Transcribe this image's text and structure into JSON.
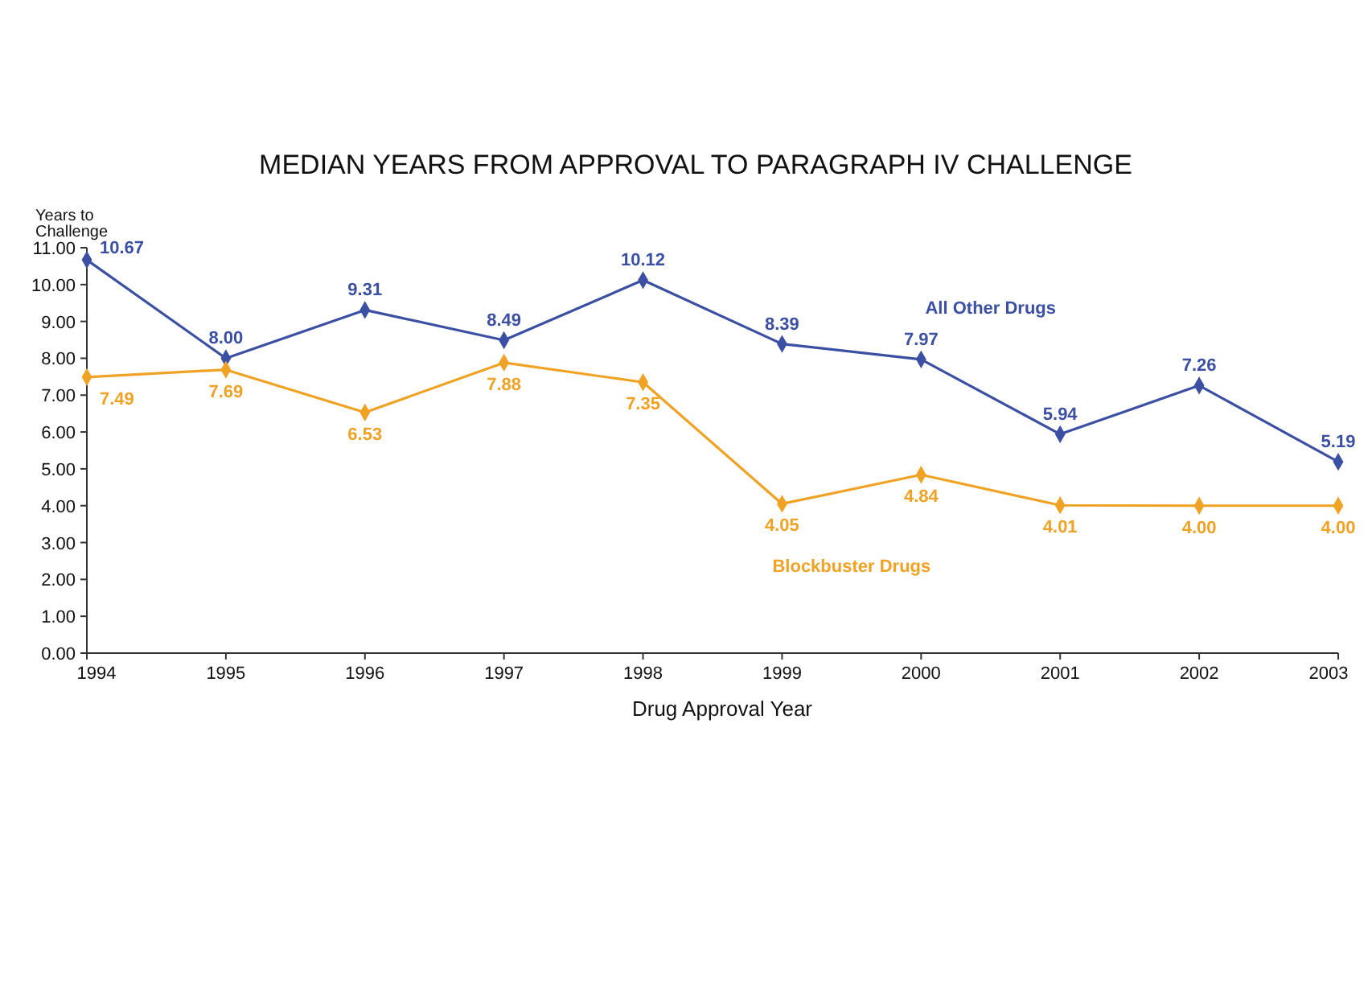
{
  "chart_data": {
    "type": "line",
    "title": "MEDIAN YEARS FROM APPROVAL TO PARAGRAPH IV CHALLENGE",
    "xlabel": "Drug Approval Year",
    "ylabel": "Years to Challenge",
    "categories": [
      "1994",
      "1995",
      "1996",
      "1997",
      "1998",
      "1999",
      "2000",
      "2001",
      "2002",
      "2003"
    ],
    "series": [
      {
        "name": "All Other Drugs",
        "color": "#3b4fa3",
        "values": [
          10.67,
          8.0,
          9.31,
          8.49,
          10.12,
          8.39,
          7.97,
          5.94,
          7.26,
          5.19
        ],
        "value_labels": [
          "10.67",
          "8.00",
          "9.31",
          "8.49",
          "10.12",
          "8.39",
          "7.97",
          "5.94",
          "7.26",
          "5.19"
        ]
      },
      {
        "name": "Blockbuster Drugs",
        "color": "#f0a224",
        "values": [
          7.49,
          7.69,
          6.53,
          7.88,
          7.35,
          4.05,
          4.84,
          4.01,
          4.0,
          4.0
        ],
        "value_labels": [
          "7.49",
          "7.69",
          "6.53",
          "7.88",
          "7.35",
          "4.05",
          "4.84",
          "4.01",
          "4.00",
          "4.00"
        ]
      }
    ],
    "ylim": [
      0,
      11
    ],
    "yticks": [
      {
        "value": 0,
        "label": "0.00"
      },
      {
        "value": 1,
        "label": "1.00"
      },
      {
        "value": 2,
        "label": "2.00"
      },
      {
        "value": 3,
        "label": "3.00"
      },
      {
        "value": 4,
        "label": "4.00"
      },
      {
        "value": 5,
        "label": "5.00"
      },
      {
        "value": 6,
        "label": "6.00"
      },
      {
        "value": 7,
        "label": "7.00"
      },
      {
        "value": 8,
        "label": "8.00"
      },
      {
        "value": 9,
        "label": "9.00"
      },
      {
        "value": 10,
        "label": "10.00"
      },
      {
        "value": 11,
        "label": "11.00"
      }
    ],
    "marker": "diamond",
    "line_style": "solid",
    "legend": false,
    "grid": false
  }
}
